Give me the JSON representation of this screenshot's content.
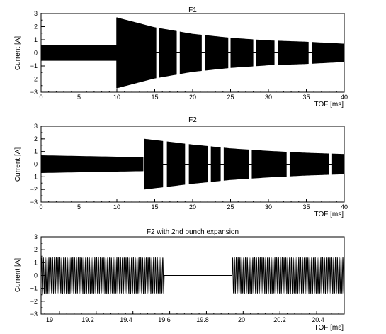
{
  "chart_data": [
    {
      "type": "line",
      "title": "F1",
      "xlabel": "TOF [ms]",
      "ylabel": "Current [A]",
      "xlim": [
        0,
        40
      ],
      "ylim": [
        -3,
        3
      ],
      "xticks": [
        0,
        5,
        10,
        15,
        20,
        25,
        30,
        35,
        40
      ],
      "yticks": [
        -3,
        -2,
        -1,
        0,
        1,
        2,
        3
      ],
      "grid": false,
      "legend": "none",
      "envelope_before_injection": {
        "x": [
          0,
          10
        ],
        "amplitude": [
          0.6,
          0.6
        ]
      },
      "envelope_after_injection": {
        "x": [
          10,
          15,
          20,
          25,
          30,
          35,
          40
        ],
        "amplitude": [
          2.7,
          1.95,
          1.45,
          1.15,
          0.95,
          0.85,
          0.7
        ]
      },
      "gaps_ms": [
        [
          15.2,
          15.6
        ],
        [
          17.9,
          18.3
        ],
        [
          21.2,
          21.6
        ],
        [
          24.7,
          25.0
        ],
        [
          28.0,
          28.4
        ],
        [
          30.8,
          31.3
        ],
        [
          35.3,
          35.7
        ]
      ]
    },
    {
      "type": "line",
      "title": "F2",
      "xlabel": "TOF [ms]",
      "ylabel": "Current [A]",
      "xlim": [
        0,
        40
      ],
      "ylim": [
        -3,
        3
      ],
      "xticks": [
        0,
        5,
        10,
        15,
        20,
        25,
        30,
        35,
        40
      ],
      "yticks": [
        -3,
        -2,
        -1,
        0,
        1,
        2,
        3
      ],
      "grid": false,
      "legend": "none",
      "envelope_before_injection": {
        "x": [
          0,
          13.7
        ],
        "amplitude": [
          0.7,
          0.55
        ]
      },
      "envelope_after_injection": {
        "x": [
          13.7,
          20,
          25,
          30,
          35,
          40
        ],
        "amplitude": [
          2.0,
          1.55,
          1.25,
          1.05,
          0.9,
          0.8
        ]
      },
      "gaps_ms": [
        [
          16.1,
          16.6
        ],
        [
          19.0,
          19.5
        ],
        [
          22.0,
          22.4
        ],
        [
          23.7,
          24.1
        ],
        [
          27.4,
          27.8
        ],
        [
          32.4,
          32.8
        ],
        [
          38.0,
          38.4
        ]
      ]
    },
    {
      "type": "line",
      "title": "F2 with 2nd bunch expansion",
      "xlabel": "TOF [ms]",
      "ylabel": "Current [A]",
      "xlim": [
        18.9,
        20.55
      ],
      "ylim": [
        -3,
        3
      ],
      "xticks": [
        19,
        19.2,
        19.4,
        19.6,
        19.8,
        20,
        20.2,
        20.4
      ],
      "yticks": [
        -3,
        -2,
        -1,
        0,
        1,
        2,
        3
      ],
      "grid": false,
      "legend": "none",
      "sine_amplitude": 1.4,
      "cycles_per_ms": 100,
      "flat_segment": {
        "x": [
          19.57,
          19.94
        ],
        "y": 0
      }
    }
  ],
  "panels": [
    {
      "title": "F1",
      "ylabel": "Current [A]",
      "xlabel": "TOF [ms]",
      "xtick_labels": [
        "0",
        "5",
        "10",
        "15",
        "20",
        "25",
        "30",
        "35",
        "40"
      ],
      "ytick_labels": [
        "−3",
        "−2",
        "−1",
        "0",
        "1",
        "2",
        "3"
      ]
    },
    {
      "title": "F2",
      "ylabel": "Current [A]",
      "xlabel": "TOF [ms]",
      "xtick_labels": [
        "0",
        "5",
        "10",
        "15",
        "20",
        "25",
        "30",
        "35",
        "40"
      ],
      "ytick_labels": [
        "−3",
        "−2",
        "−1",
        "0",
        "1",
        "2",
        "3"
      ]
    },
    {
      "title": "F2 with 2nd bunch expansion",
      "ylabel": "Current [A]",
      "xlabel": "TOF [ms]",
      "xtick_labels": [
        "19",
        "19.2",
        "19.4",
        "19.6",
        "19.8",
        "20",
        "20.2",
        "20.4"
      ],
      "ytick_labels": [
        "−3",
        "−2",
        "−1",
        "0",
        "1",
        "2",
        "3"
      ]
    }
  ]
}
